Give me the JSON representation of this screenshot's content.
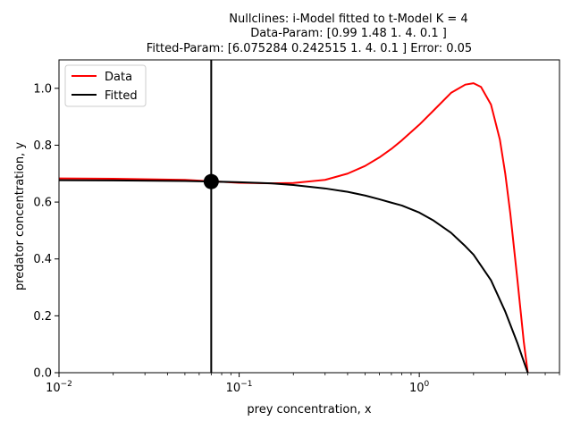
{
  "chart_data": {
    "type": "line",
    "title_lines": [
      "Nullclines: i-Model fitted to t-Model K = 4",
      "Data-Param: [0.99 1.48 1.   4.   0.1 ]",
      "Fitted-Param: [6.075284 0.242515 1.       4.       0.1     ] Error: 0.05"
    ],
    "xlabel": "prey concentration, x",
    "ylabel": "predator concentration, y",
    "xscale": "log",
    "xlim": [
      0.01,
      6
    ],
    "ylim": [
      0,
      1.1
    ],
    "x_ticks": [
      {
        "value": 0.01,
        "base": "10",
        "exp": "−2"
      },
      {
        "value": 0.1,
        "base": "10",
        "exp": "−1"
      },
      {
        "value": 1,
        "base": "10",
        "exp": "0"
      }
    ],
    "y_ticks": [
      {
        "value": 0.0,
        "label": "0.0"
      },
      {
        "value": 0.2,
        "label": "0.2"
      },
      {
        "value": 0.4,
        "label": "0.4"
      },
      {
        "value": 0.6,
        "label": "0.6"
      },
      {
        "value": 0.8,
        "label": "0.8"
      },
      {
        "value": 1.0,
        "label": "1.0"
      }
    ],
    "legend": {
      "placement": "upper-left"
    },
    "series": [
      {
        "name": "Data",
        "color": "#ff0000",
        "x": [
          0.01,
          0.02,
          0.05,
          0.07,
          0.1,
          0.15,
          0.2,
          0.3,
          0.4,
          0.5,
          0.6,
          0.7,
          0.8,
          1.0,
          1.2,
          1.5,
          1.8,
          2.0,
          2.2,
          2.5,
          2.8,
          3.0,
          3.2,
          3.5,
          3.8,
          4.0
        ],
        "y": [
          0.683,
          0.682,
          0.678,
          0.673,
          0.668,
          0.666,
          0.667,
          0.678,
          0.7,
          0.727,
          0.757,
          0.787,
          0.817,
          0.872,
          0.922,
          0.984,
          1.013,
          1.018,
          1.005,
          0.943,
          0.82,
          0.7,
          0.56,
          0.33,
          0.11,
          0.0
        ]
      },
      {
        "name": "Fitted",
        "color": "#000000",
        "x": [
          0.01,
          0.02,
          0.05,
          0.07,
          0.1,
          0.15,
          0.2,
          0.3,
          0.4,
          0.5,
          0.6,
          0.7,
          0.8,
          1.0,
          1.2,
          1.5,
          1.8,
          2.0,
          2.5,
          3.0,
          3.5,
          3.8,
          4.0
        ],
        "y": [
          0.677,
          0.676,
          0.674,
          0.672,
          0.67,
          0.666,
          0.66,
          0.648,
          0.636,
          0.623,
          0.61,
          0.598,
          0.588,
          0.563,
          0.535,
          0.492,
          0.445,
          0.415,
          0.325,
          0.215,
          0.105,
          0.04,
          0.0
        ]
      }
    ],
    "vertical_line": {
      "x": 0.07,
      "color": "#000000"
    },
    "equilibrium_point": {
      "x": 0.07,
      "y": 0.672,
      "color": "#000000"
    }
  }
}
